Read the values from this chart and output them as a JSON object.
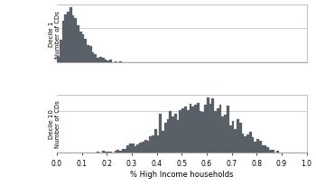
{
  "decile1_label": "Decile 1",
  "decile10_label": "Decile 10",
  "ylabel": "Number of CDs",
  "xlabel": "% High Income households",
  "xlim": [
    0.0,
    1.0
  ],
  "xticks": [
    0.0,
    0.1,
    0.2,
    0.3,
    0.4,
    0.5,
    0.6,
    0.7,
    0.8,
    0.9,
    1.0
  ],
  "xtick_labels": [
    "0.0",
    "0.1",
    "0.2",
    "0.3",
    "0.4",
    "0.5",
    "0.6",
    "0.7",
    "0.8",
    "0.9",
    "1.0"
  ],
  "nbins": 100,
  "bar_color": "#5a6068",
  "grid_color": "#c8c8c8",
  "bg_color": "#ffffff",
  "decile1_seed": 1,
  "decile1_beta_a": 2.5,
  "decile1_beta_b": 30,
  "decile1_n": 3000,
  "decile10_beta_a": 8,
  "decile10_beta_b": 6,
  "decile10_n": 2000
}
